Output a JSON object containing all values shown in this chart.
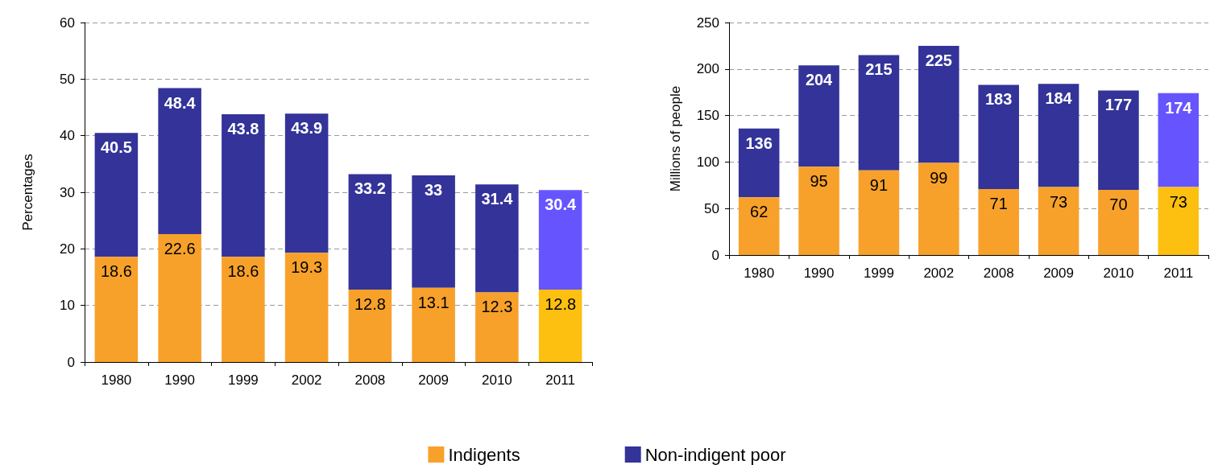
{
  "chart_data": [
    {
      "type": "bar",
      "ylabel": "Percentages",
      "categories": [
        "1980",
        "1990",
        "1999",
        "2002",
        "2008",
        "2009",
        "2010",
        "2011"
      ],
      "stacked": true,
      "ylim": [
        0,
        60
      ],
      "yticks": [
        0,
        10,
        20,
        30,
        40,
        50,
        60
      ],
      "grid": "y",
      "legend": "bottom",
      "series": [
        {
          "name": "Indigents",
          "color": "#f7a12b",
          "colors": [
            "#f7a12b",
            "#f7a12b",
            "#f7a12b",
            "#f7a12b",
            "#f7a12b",
            "#f7a12b",
            "#f7a12b",
            "#fdc010"
          ],
          "values": [
            18.6,
            22.6,
            18.6,
            19.3,
            12.8,
            13.1,
            12.3,
            12.8
          ],
          "value_labels": [
            "18.6",
            "22.6",
            "18.6",
            "19.3",
            "12.8",
            "13.1",
            "12.3",
            "12.8"
          ]
        },
        {
          "name": "Non-indigent poor",
          "color": "#333399",
          "colors": [
            "#333399",
            "#333399",
            "#333399",
            "#333399",
            "#333399",
            "#333399",
            "#333399",
            "#6655ff"
          ],
          "values": [
            21.9,
            25.8,
            25.2,
            24.6,
            20.4,
            19.9,
            19.1,
            17.6
          ]
        }
      ],
      "totals": [
        "40.5",
        "48.4",
        "43.8",
        "43.9",
        "33.2",
        "33",
        "31.4",
        "30.4"
      ]
    },
    {
      "type": "bar",
      "ylabel": "Millions of people",
      "categories": [
        "1980",
        "1990",
        "1999",
        "2002",
        "2008",
        "2009",
        "2010",
        "2011"
      ],
      "stacked": true,
      "ylim": [
        0,
        250
      ],
      "yticks": [
        0,
        50,
        100,
        150,
        200,
        250
      ],
      "grid": "y",
      "series": [
        {
          "color": "#f7a12b",
          "colors": [
            "#f7a12b",
            "#f7a12b",
            "#f7a12b",
            "#f7a12b",
            "#f7a12b",
            "#f7a12b",
            "#f7a12b",
            "#fdc010"
          ],
          "values": [
            62,
            95,
            91,
            99,
            71,
            73,
            70,
            73
          ],
          "value_labels": [
            "62",
            "95",
            "91",
            "99",
            "71",
            "73",
            "70",
            "73"
          ]
        },
        {
          "color": "#333399",
          "colors": [
            "#333399",
            "#333399",
            "#333399",
            "#333399",
            "#333399",
            "#333399",
            "#333399",
            "#6655ff"
          ],
          "values": [
            74,
            109,
            124,
            126,
            112,
            111,
            107,
            101
          ]
        }
      ],
      "totals": [
        "136",
        "204",
        "215",
        "225",
        "183",
        "184",
        "177",
        "174"
      ]
    }
  ]
}
